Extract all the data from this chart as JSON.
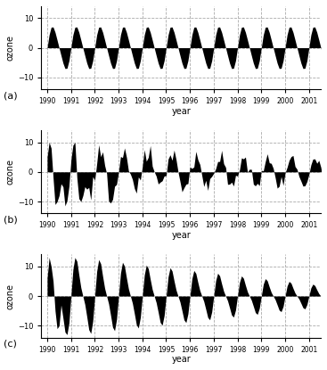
{
  "xlabel": "year",
  "ylabel": "ozone",
  "ylim": [
    -14,
    14
  ],
  "yticks": [
    -10,
    0,
    10
  ],
  "xlim_start": 1989.75,
  "xlim_end": 2001.5,
  "xticks": [
    1990,
    1991,
    1992,
    1993,
    1994,
    1995,
    1996,
    1997,
    1998,
    1999,
    2000,
    2001
  ],
  "panel_labels": [
    "(a)",
    "(b)",
    "(c)"
  ],
  "n_months": 144,
  "start_year": 1990,
  "background_color": "#ffffff",
  "fill_color": "#000000",
  "line_color": "#000000",
  "grid_color": "#aaaaaa",
  "grid_style": "--",
  "figsize": [
    3.67,
    4.15
  ],
  "dpi": 100
}
